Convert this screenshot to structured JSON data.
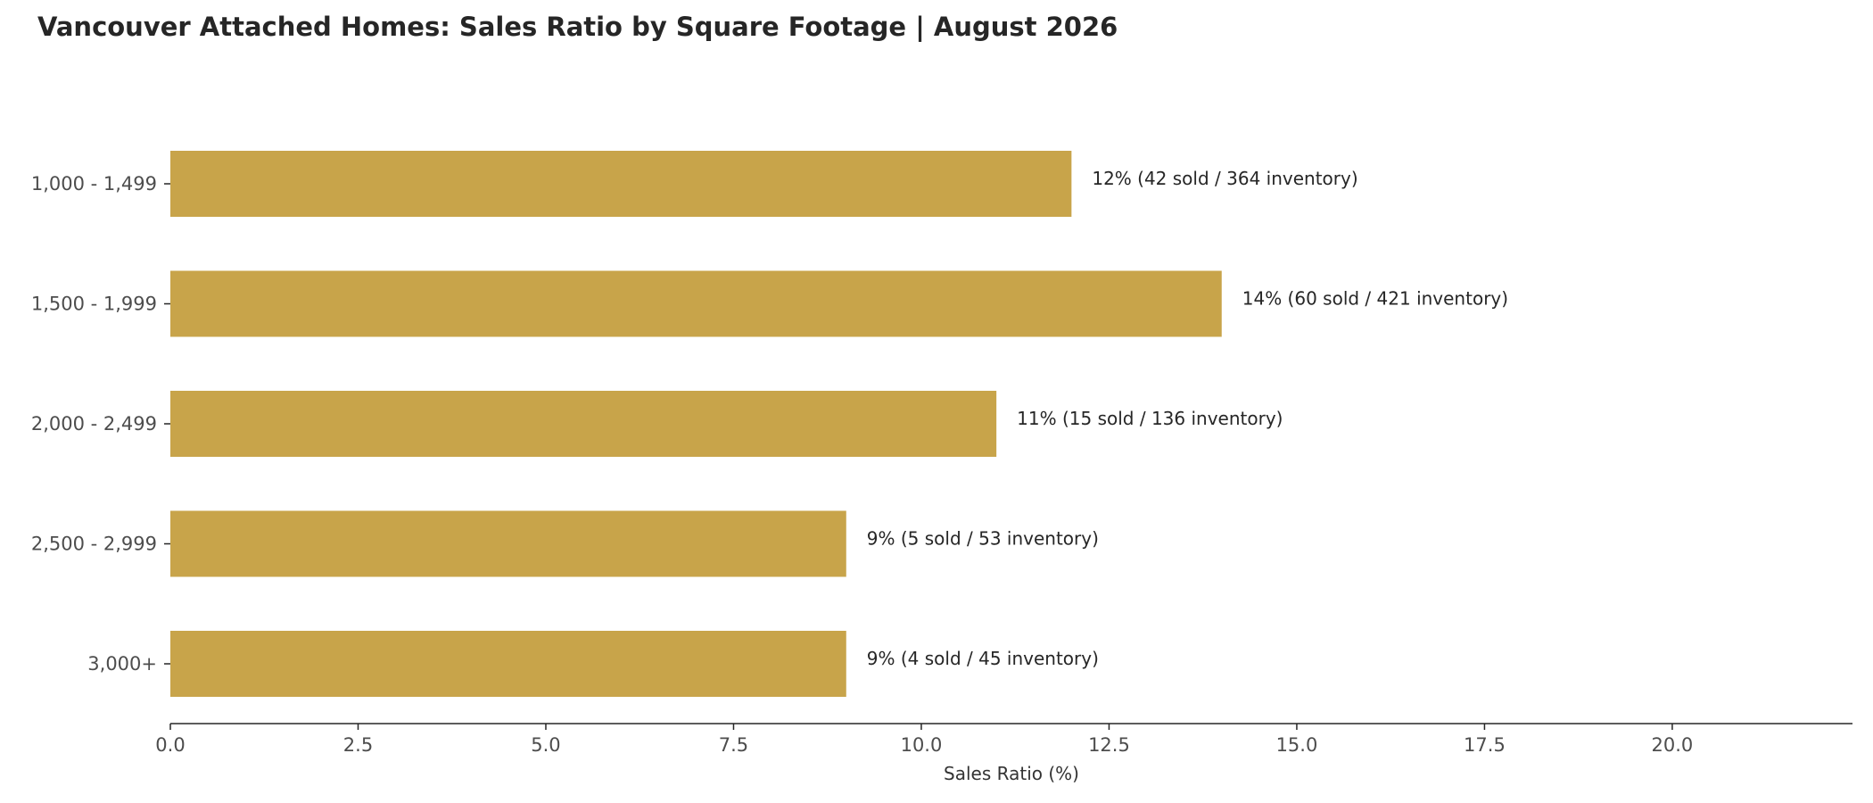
{
  "chart_data": {
    "type": "bar",
    "orientation": "horizontal",
    "title": "Vancouver Attached Homes: Sales Ratio by Square Footage | August 2026",
    "xlabel": "Sales Ratio (%)",
    "ylabel": "",
    "categories": [
      "1,000 - 1,499",
      "1,500 - 1,999",
      "2,000 - 2,499",
      "2,500 - 2,999",
      "3,000+"
    ],
    "values": [
      12,
      14,
      11,
      9,
      9
    ],
    "data_labels": [
      "12%  (42 sold / 364 inventory)",
      "14%  (60 sold / 421 inventory)",
      "11%  (15 sold / 136 inventory)",
      "9%  (5 sold / 53 inventory)",
      "9%  (4 sold / 45 inventory)"
    ],
    "xlim": [
      0,
      22.4
    ],
    "xticks": [
      "0.0",
      "2.5",
      "5.0",
      "7.5",
      "10.0",
      "12.5",
      "15.0",
      "17.5",
      "20.0"
    ],
    "grid": false,
    "bar_color": "#c8a44a"
  }
}
